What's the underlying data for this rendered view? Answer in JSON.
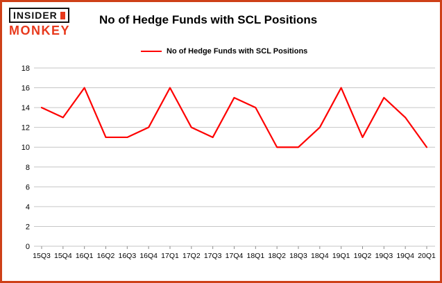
{
  "brand": {
    "line1": "INSIDER",
    "line2": "MONKEY"
  },
  "title": "No of Hedge Funds with SCL Positions",
  "legend": {
    "label": "No of Hedge Funds with SCL Positions"
  },
  "colors": {
    "frame": "#ce4018",
    "line": "#fe0000",
    "grid": "#c6c6c6",
    "tick": "#8c8c8c",
    "logo_red": "#e8391c",
    "text": "#000000"
  },
  "chart_data": {
    "type": "line",
    "title": "No of Hedge Funds with SCL Positions",
    "categories": [
      "15Q3",
      "15Q4",
      "16Q1",
      "16Q2",
      "16Q3",
      "16Q4",
      "17Q1",
      "17Q2",
      "17Q3",
      "17Q4",
      "18Q1",
      "18Q2",
      "18Q3",
      "18Q4",
      "19Q1",
      "19Q2",
      "19Q3",
      "19Q4",
      "20Q1"
    ],
    "values": [
      14,
      13,
      16,
      11,
      11,
      12,
      16,
      12,
      11,
      15,
      14,
      10,
      10,
      12,
      16,
      11,
      15,
      13,
      10
    ],
    "xlabel": "",
    "ylabel": "",
    "ylim": [
      0,
      18
    ],
    "ytick_step": 2,
    "grid": true,
    "legend_position": "top-left",
    "series_color": "#fe0000"
  }
}
